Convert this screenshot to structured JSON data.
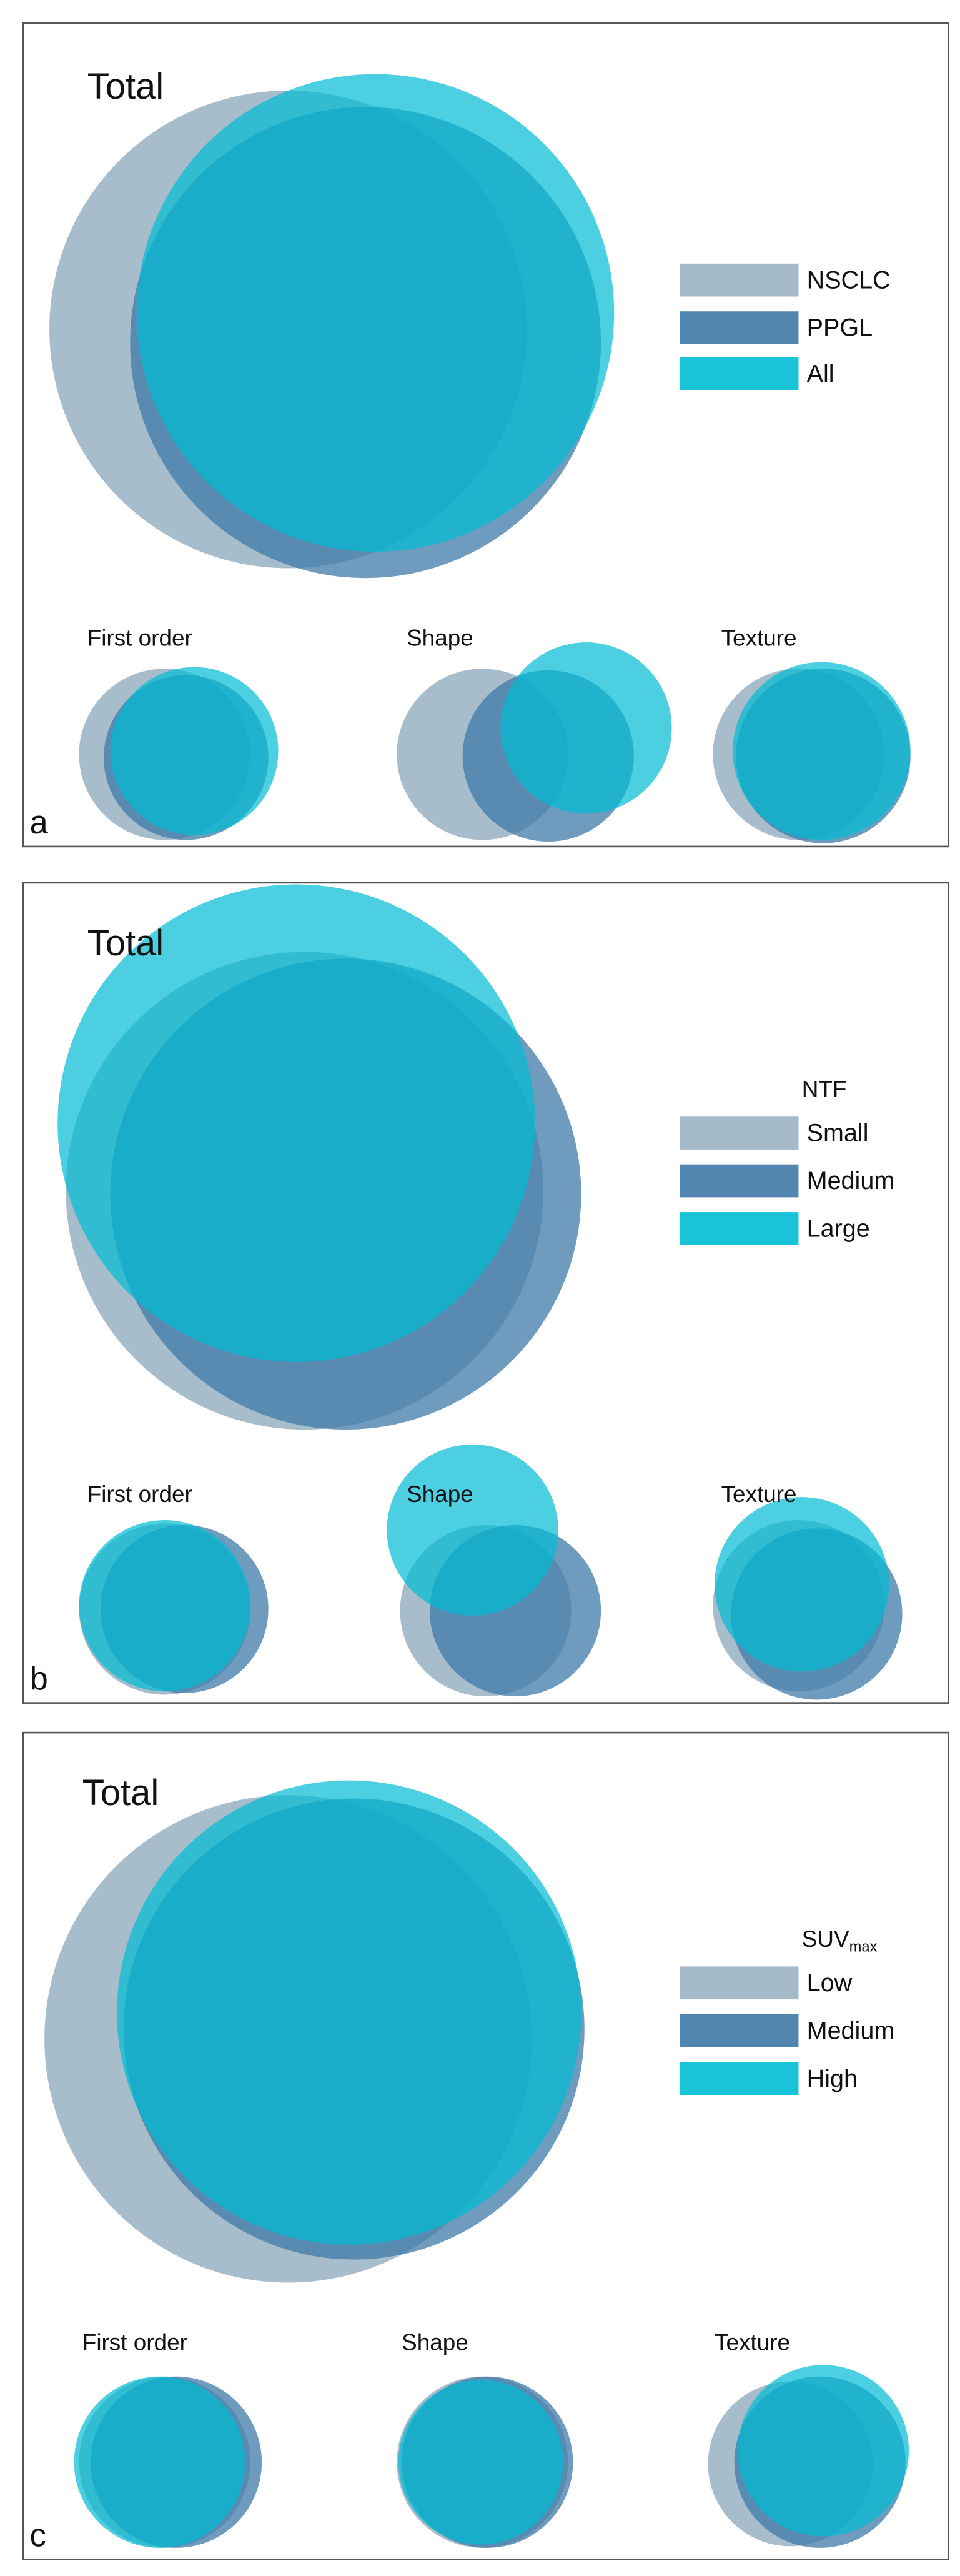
{
  "panels": [
    {
      "label": "a",
      "legend": {
        "items": [
          "NSCLC",
          "PPGL",
          "All"
        ]
      },
      "venns": [
        {
          "title": "Total"
        },
        {
          "title": "First order"
        },
        {
          "title": "Shape"
        },
        {
          "title": "Texture"
        }
      ]
    },
    {
      "label": "b",
      "legend": {
        "title": "NTF",
        "items": [
          "Small",
          "Medium",
          "Large"
        ]
      },
      "venns": [
        {
          "title": "Total"
        },
        {
          "title": "First order"
        },
        {
          "title": "Shape"
        },
        {
          "title": "Texture"
        }
      ]
    },
    {
      "label": "c",
      "legend": {
        "title": {
          "text": "SUV",
          "subscript": "max"
        },
        "items": [
          "Low",
          "Medium",
          "High"
        ]
      },
      "venns": [
        {
          "title": "Total"
        },
        {
          "title": "First order"
        },
        {
          "title": "Shape"
        },
        {
          "title": "Texture"
        }
      ]
    }
  ]
}
